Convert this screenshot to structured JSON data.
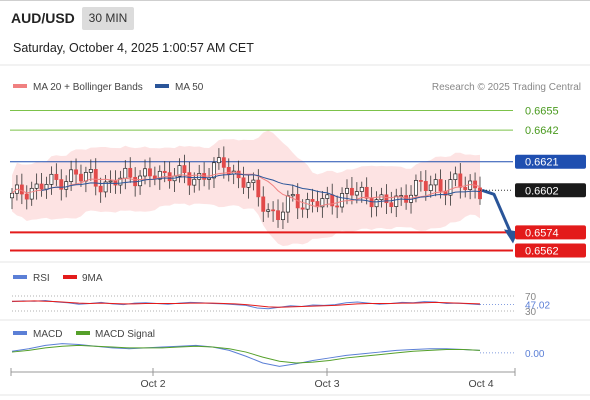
{
  "header": {
    "symbol": "AUD/USD",
    "timeframe": "30 MIN",
    "datetime": "Saturday, October 4, 2025 1:00:57 AM CET"
  },
  "legend": {
    "ma20_label": "MA 20 + Bollinger Bands",
    "ma50_label": "MA 50",
    "copyright": "Research © 2025 Trading Central",
    "ma20_color": "#f08080",
    "ma50_color": "#2a5599"
  },
  "chart_data": [
    {
      "type": "candlestick",
      "title": "AUD/USD",
      "ylim": [
        0.6557,
        0.6662
      ],
      "x_ticks": [
        "Oct 2",
        "Oct 3",
        "Oct 4"
      ],
      "last_price": 0.6602,
      "levels": [
        {
          "value": 0.6655,
          "label": "0.6655",
          "kind": "resistance",
          "color": "#7cc24a"
        },
        {
          "value": 0.6642,
          "label": "0.6642",
          "kind": "resistance",
          "color": "#7cc24a"
        },
        {
          "value": 0.6621,
          "label": "0.6621",
          "kind": "pivot",
          "color": "#1f4fb0"
        },
        {
          "value": 0.6574,
          "label": "0.6574",
          "kind": "support",
          "color": "#e31b1b"
        },
        {
          "value": 0.6562,
          "label": "0.6562",
          "kind": "support",
          "color": "#e31b1b"
        }
      ],
      "forecast_arrow": {
        "from": 0.6602,
        "to": 0.6568,
        "direction": "down",
        "color": "#2a5599"
      },
      "close_path": [
        0.6597,
        0.6601,
        0.6604,
        0.6603,
        0.6606,
        0.6608,
        0.6611,
        0.6612,
        0.6609,
        0.6613,
        0.6607,
        0.6603,
        0.6608,
        0.6614,
        0.6612,
        0.661,
        0.6611,
        0.6613,
        0.6615,
        0.6612,
        0.6608,
        0.6611,
        0.6614,
        0.6616,
        0.6619,
        0.6614,
        0.661,
        0.6604,
        0.6596,
        0.659,
        0.6585,
        0.659,
        0.6597,
        0.6593,
        0.6595,
        0.6592,
        0.6594,
        0.6598,
        0.6601,
        0.66,
        0.6597,
        0.6599,
        0.6594,
        0.6592,
        0.6596,
        0.6603,
        0.6605,
        0.6603,
        0.6606,
        0.6605,
        0.6608,
        0.6603,
        0.6606,
        0.6603
      ]
    },
    {
      "type": "line",
      "title": "RSI",
      "series": [
        {
          "name": "RSI",
          "color": "#5b7fd6",
          "values": [
            55,
            57,
            56,
            58,
            54,
            52,
            48,
            50,
            53,
            49,
            47,
            51,
            52,
            50,
            48,
            51,
            53,
            52,
            50,
            49,
            47,
            45,
            38,
            36,
            40,
            44,
            42,
            46,
            45,
            47,
            52,
            54,
            51,
            48,
            50,
            53,
            52,
            55,
            54,
            50,
            51,
            49,
            47
          ]
        },
        {
          "name": "9MA",
          "color": "#e31b1b",
          "values": [
            56,
            56,
            57,
            56,
            55,
            53,
            51,
            50,
            51,
            50,
            49,
            49,
            50,
            50,
            50,
            50,
            51,
            51,
            51,
            50,
            49,
            47,
            44,
            41,
            40,
            41,
            42,
            43,
            44,
            45,
            47,
            49,
            50,
            50,
            50,
            51,
            51,
            52,
            53,
            52,
            51,
            50,
            49
          ]
        }
      ],
      "ylim": [
        30,
        70
      ],
      "y_ticks": [
        70,
        30
      ],
      "last_value": "47.02"
    },
    {
      "type": "line",
      "title": "MACD",
      "series": [
        {
          "name": "MACD",
          "color": "#5b7fd6",
          "values": [
            0.2,
            0.5,
            0.9,
            1.1,
            1.0,
            0.8,
            0.6,
            0.5,
            0.6,
            0.7,
            0.8,
            0.9,
            0.7,
            0.3,
            -0.4,
            -1.2,
            -1.6,
            -1.3,
            -0.9,
            -0.6,
            -0.3,
            -0.1,
            0.1,
            0.3,
            0.4,
            0.5,
            0.5,
            0.4,
            0.3
          ]
        },
        {
          "name": "MACD Signal",
          "color": "#55a02a",
          "values": [
            0.1,
            0.3,
            0.6,
            0.8,
            0.9,
            0.8,
            0.7,
            0.6,
            0.6,
            0.6,
            0.7,
            0.8,
            0.7,
            0.5,
            0.1,
            -0.5,
            -1.0,
            -1.2,
            -1.1,
            -0.9,
            -0.6,
            -0.4,
            -0.2,
            0.0,
            0.2,
            0.3,
            0.4,
            0.4,
            0.3
          ]
        }
      ],
      "last_value": "0.00"
    }
  ]
}
